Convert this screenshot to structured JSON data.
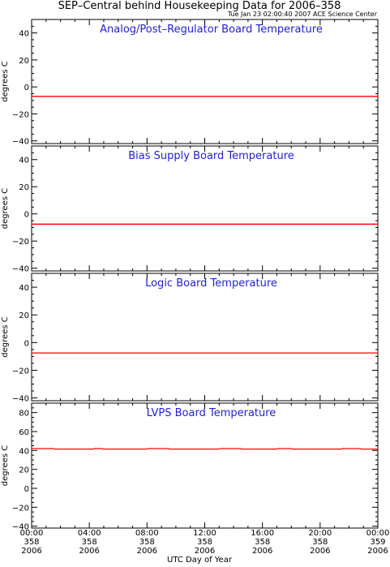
{
  "header": {
    "title": "SEP–Central behind Housekeeping Data for 2006–358",
    "timestamp": "Tue Jan 23 02:00:40 2007 ACE Science Center"
  },
  "colors": {
    "trace": "#ff0000",
    "panel_title": "#1f1fd6",
    "axes": "#000000"
  },
  "x_axis": {
    "label": "UTC Day of Year",
    "range_hours": [
      0,
      24
    ],
    "ticks": [
      {
        "hour": 0,
        "time": "00:00",
        "doy": "358",
        "year": "2006"
      },
      {
        "hour": 4,
        "time": "04:00",
        "doy": "358",
        "year": "2006"
      },
      {
        "hour": 8,
        "time": "08:00",
        "doy": "358",
        "year": "2006"
      },
      {
        "hour": 12,
        "time": "12:00",
        "doy": "358",
        "year": "2006"
      },
      {
        "hour": 16,
        "time": "16:00",
        "doy": "358",
        "year": "2006"
      },
      {
        "hour": 20,
        "time": "20:00",
        "doy": "358",
        "year": "2006"
      },
      {
        "hour": 24,
        "time": "00:00",
        "doy": "359",
        "year": "2006"
      }
    ]
  },
  "chart_data": [
    {
      "type": "line",
      "title": "Analog/Post–Regulator Board Temperature",
      "ylabel": "degrees C",
      "ylim": [
        -42,
        50
      ],
      "yticks": [
        40,
        20,
        0,
        -20,
        -40
      ],
      "ytick_labels": [
        "40",
        "20",
        "0",
        "−20",
        "−40"
      ],
      "x": [
        0,
        24
      ],
      "y": [
        -7,
        -7
      ]
    },
    {
      "type": "line",
      "title": "Bias Supply Board Temperature",
      "ylabel": "degrees C",
      "ylim": [
        -42,
        50
      ],
      "yticks": [
        40,
        20,
        0,
        -20,
        -40
      ],
      "ytick_labels": [
        "40",
        "20",
        "0",
        "−20",
        "−40"
      ],
      "x": [
        0,
        24
      ],
      "y": [
        -7.5,
        -7.5
      ]
    },
    {
      "type": "line",
      "title": "Logic Board Temperature",
      "ylabel": "degrees C",
      "ylim": [
        -42,
        50
      ],
      "yticks": [
        40,
        20,
        0,
        -20,
        -40
      ],
      "ytick_labels": [
        "40",
        "20",
        "0",
        "−20",
        "−40"
      ],
      "x": [
        0,
        24
      ],
      "y": [
        -7.5,
        -7.5
      ]
    },
    {
      "type": "line",
      "title": "LVPS Board Temperature",
      "ylabel": "degrees C",
      "ylim": [
        -42,
        90
      ],
      "yticks": [
        80,
        60,
        40,
        20,
        0,
        -20,
        -40
      ],
      "ytick_labels": [
        "80",
        "60",
        "40",
        "20",
        "0",
        "−20",
        "−40"
      ],
      "x": [
        0,
        1.5,
        1.55,
        4.3,
        4.35,
        4.9,
        4.95,
        8.0,
        8.05,
        9.5,
        9.55,
        13.0,
        13.05,
        14.5,
        14.55,
        17.0,
        17.05,
        18.0,
        18.05,
        21.5,
        21.55,
        22.8,
        22.85,
        24
      ],
      "y": [
        42,
        42,
        41.5,
        41.5,
        42,
        42,
        41.5,
        41.5,
        42,
        42,
        41.5,
        41.5,
        42,
        42,
        41.5,
        41.5,
        42,
        42,
        41.5,
        41.5,
        42,
        42,
        41.5,
        41.5
      ]
    }
  ]
}
